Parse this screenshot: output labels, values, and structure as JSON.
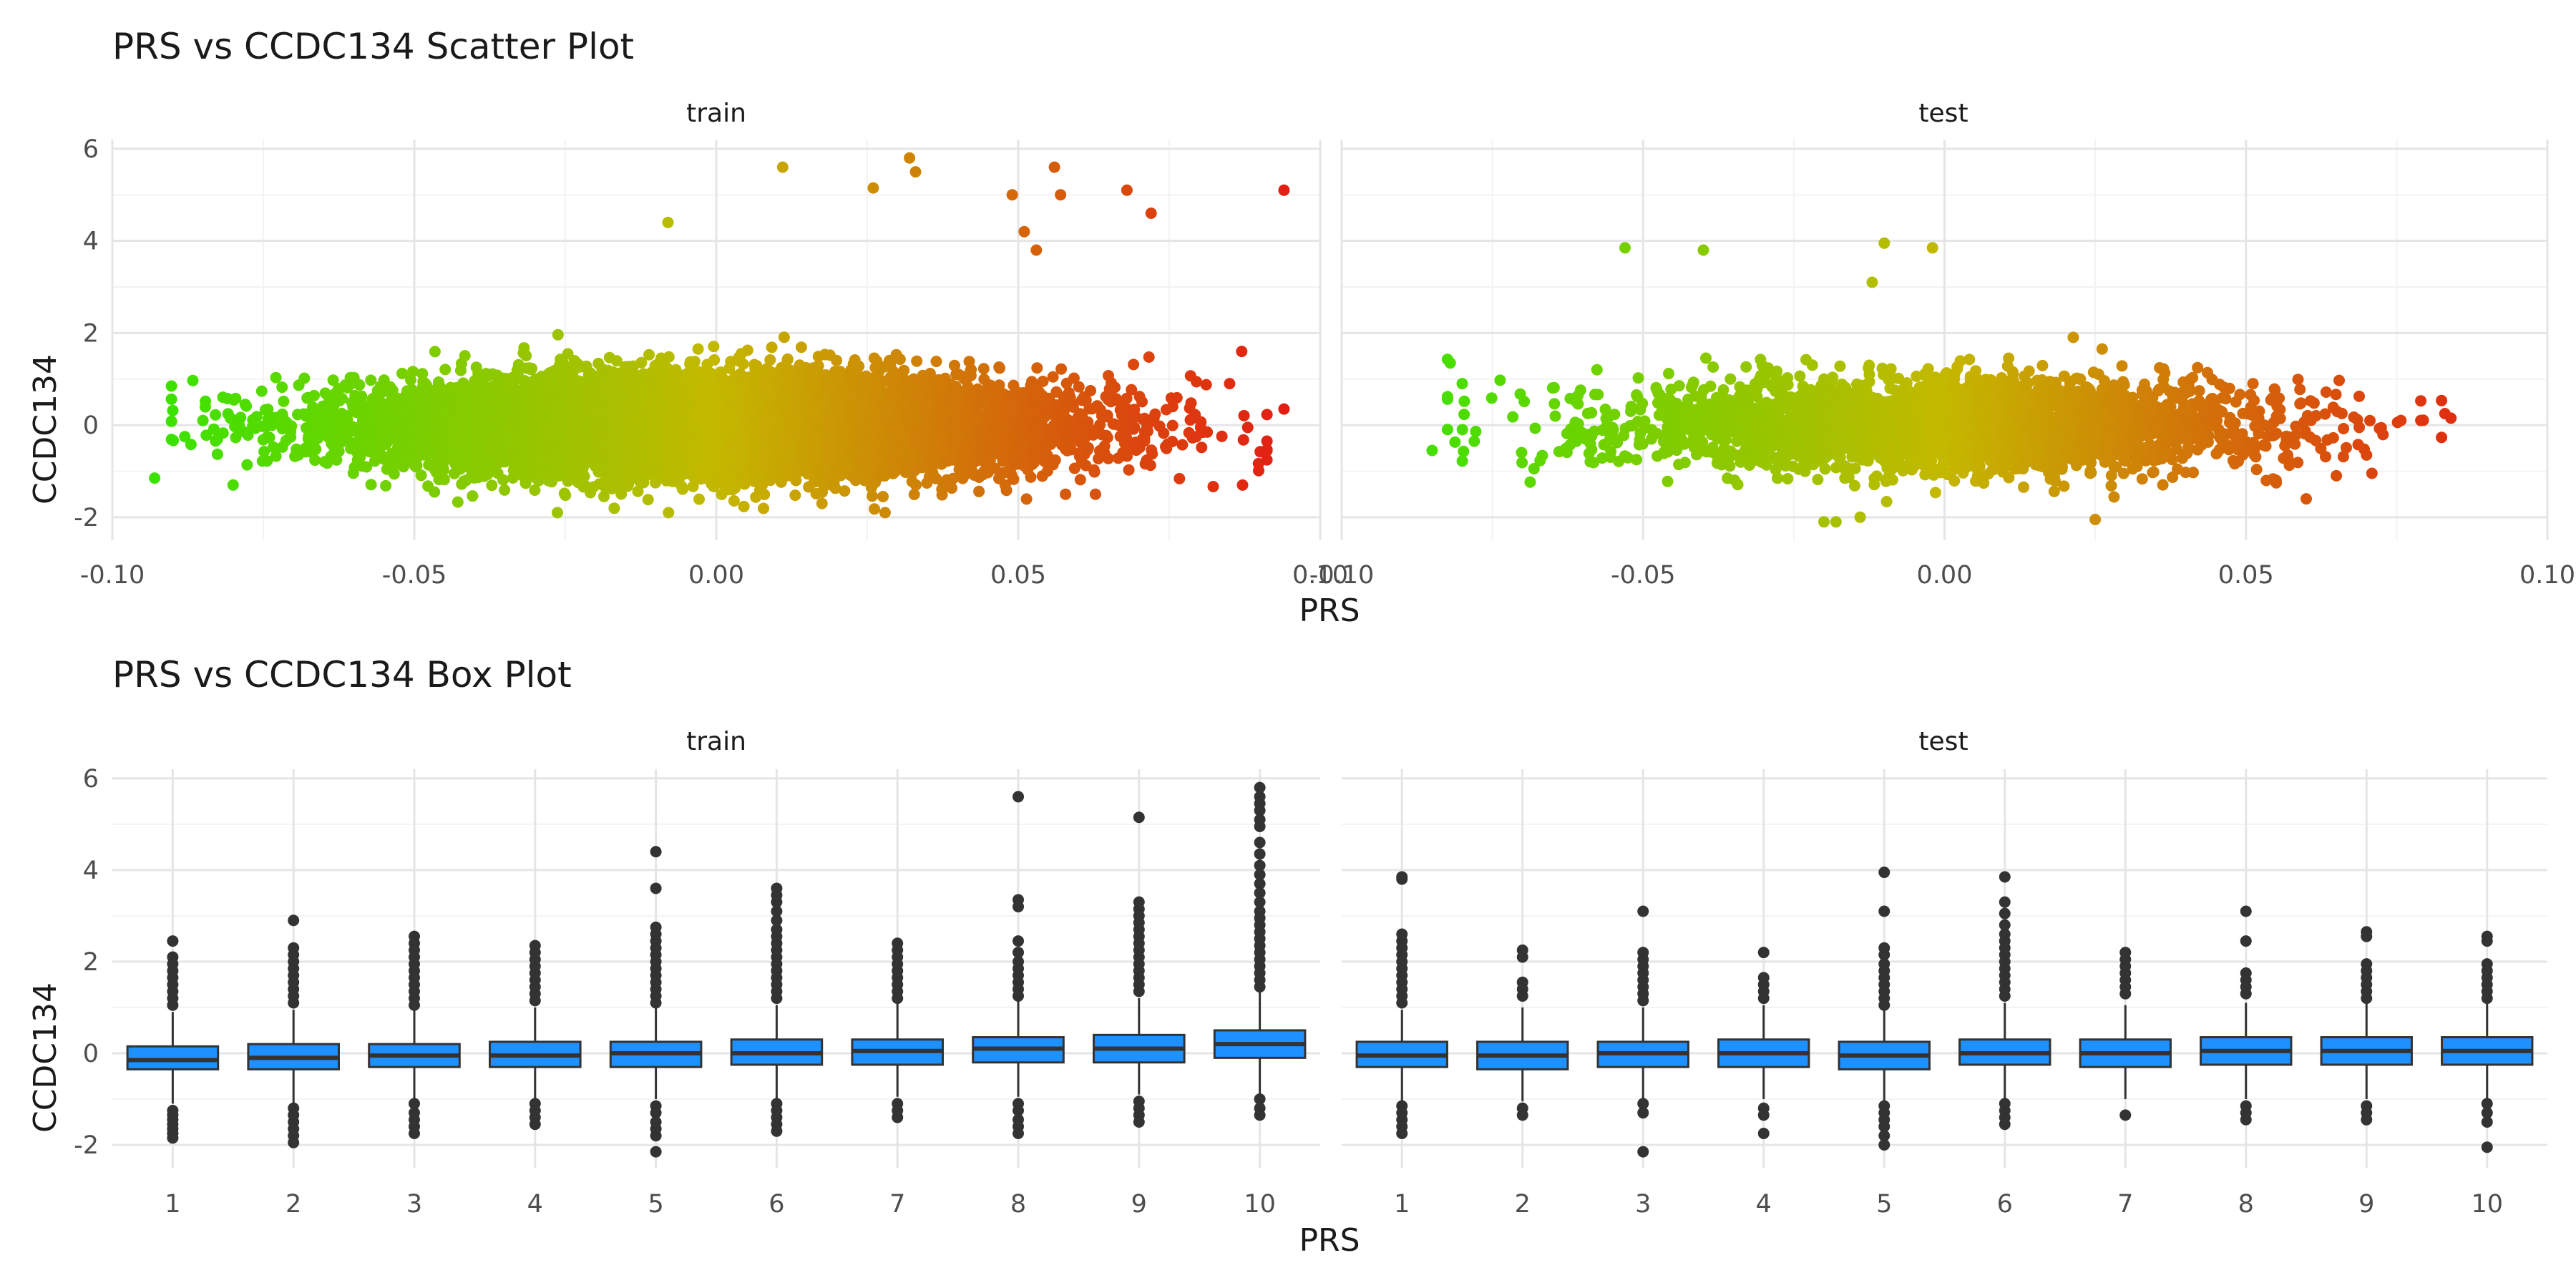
{
  "chart_data": [
    {
      "type": "scatter",
      "title": "PRS vs CCDC134 Scatter Plot",
      "xlabel": "PRS",
      "ylabel": "CCDC134",
      "xlim": [
        -0.1,
        0.1
      ],
      "ylim": [
        -2.5,
        6.2
      ],
      "x_ticks": [
        -0.1,
        -0.05,
        0.0,
        0.05,
        0.1
      ],
      "x_tick_labels": [
        "-0.10",
        "-0.05",
        "0.00",
        "0.05",
        "0.10"
      ],
      "y_ticks": [
        -2,
        0,
        2,
        4,
        6
      ],
      "grid": true,
      "legend": "none",
      "color_scale": {
        "low": "#2ee600",
        "mid": "#c4b800",
        "high": "#e51414",
        "mapped_to": "PRS"
      },
      "panels": [
        {
          "name": "train",
          "x_range": [
            -0.093,
            0.094
          ],
          "bulk_points": 12000,
          "highlighted_points": [
            [
              -0.093,
              -1.15
            ],
            [
              -0.088,
              -0.25
            ],
            [
              -0.085,
              0.1
            ],
            [
              -0.08,
              -1.3
            ],
            [
              -0.078,
              0.45
            ],
            [
              0.011,
              5.6
            ],
            [
              0.026,
              5.15
            ],
            [
              0.032,
              5.8
            ],
            [
              0.033,
              5.5
            ],
            [
              0.049,
              5.0
            ],
            [
              0.056,
              5.6
            ],
            [
              0.057,
              5.0
            ],
            [
              0.068,
              5.1
            ],
            [
              0.072,
              4.6
            ],
            [
              0.094,
              5.1
            ],
            [
              0.051,
              4.2
            ],
            [
              0.053,
              3.8
            ],
            [
              -0.008,
              4.4
            ],
            [
              0.094,
              0.35
            ],
            [
              0.087,
              1.6
            ],
            [
              0.085,
              0.9
            ],
            [
              0.088,
              -0.05
            ]
          ]
        },
        {
          "name": "test",
          "x_range": [
            -0.085,
            0.085
          ],
          "bulk_points": 3000,
          "highlighted_points": [
            [
              -0.085,
              -0.55
            ],
            [
              -0.082,
              1.35
            ],
            [
              -0.08,
              0.9
            ],
            [
              -0.078,
              -0.35
            ],
            [
              -0.053,
              3.85
            ],
            [
              -0.04,
              3.8
            ],
            [
              -0.01,
              3.95
            ],
            [
              -0.002,
              3.85
            ],
            [
              -0.012,
              3.1
            ],
            [
              0.083,
              0.25
            ],
            [
              0.084,
              0.15
            ],
            [
              0.07,
              -0.65
            ],
            [
              0.06,
              -1.6
            ],
            [
              0.025,
              -2.05
            ],
            [
              -0.014,
              -2.0
            ],
            [
              -0.02,
              -2.1
            ],
            [
              -0.018,
              -2.1
            ],
            [
              0.065,
              -1.1
            ],
            [
              0.055,
              -1.2
            ],
            [
              0.079,
              0.1
            ]
          ]
        }
      ]
    },
    {
      "type": "box",
      "title": "PRS vs CCDC134 Box Plot",
      "xlabel": "PRS",
      "ylabel": "CCDC134",
      "categories": [
        "1",
        "2",
        "3",
        "4",
        "5",
        "6",
        "7",
        "8",
        "9",
        "10"
      ],
      "ylim": [
        -2.5,
        6.2
      ],
      "y_ticks": [
        -2,
        0,
        2,
        4,
        6
      ],
      "grid": true,
      "box_color": "#1e90ff",
      "panels": [
        {
          "name": "train",
          "boxes": [
            {
              "q1": -0.35,
              "median": -0.15,
              "q3": 0.15,
              "lower": -1.1,
              "upper": 0.9,
              "outliers": [
                2.45,
                2.1,
                1.95,
                1.8,
                1.65,
                1.5,
                1.35,
                1.2,
                1.05,
                -1.25,
                -1.35,
                -1.45,
                -1.55,
                -1.65,
                -1.75,
                -1.85
              ]
            },
            {
              "q1": -0.35,
              "median": -0.1,
              "q3": 0.2,
              "lower": -1.1,
              "upper": 0.95,
              "outliers": [
                2.9,
                2.3,
                2.15,
                2.0,
                1.85,
                1.7,
                1.55,
                1.4,
                1.25,
                1.1,
                -1.2,
                -1.35,
                -1.5,
                -1.65,
                -1.8,
                -1.95
              ]
            },
            {
              "q1": -0.3,
              "median": -0.05,
              "q3": 0.2,
              "lower": -1.0,
              "upper": 0.95,
              "outliers": [
                2.55,
                2.4,
                2.25,
                2.1,
                1.95,
                1.8,
                1.65,
                1.5,
                1.35,
                1.2,
                1.05,
                -1.1,
                -1.3,
                -1.45,
                -1.6,
                -1.75
              ]
            },
            {
              "q1": -0.3,
              "median": -0.05,
              "q3": 0.25,
              "lower": -1.0,
              "upper": 1.0,
              "outliers": [
                2.35,
                2.2,
                2.05,
                1.9,
                1.75,
                1.6,
                1.45,
                1.3,
                1.15,
                -1.1,
                -1.25,
                -1.4,
                -1.55
              ]
            },
            {
              "q1": -0.3,
              "median": 0.0,
              "q3": 0.25,
              "lower": -1.0,
              "upper": 1.0,
              "outliers": [
                4.4,
                3.6,
                2.75,
                2.6,
                2.45,
                2.3,
                2.15,
                2.0,
                1.85,
                1.7,
                1.55,
                1.4,
                1.25,
                1.1,
                -1.15,
                -1.3,
                -1.5,
                -1.65,
                -1.8,
                -2.15
              ]
            },
            {
              "q1": -0.25,
              "median": 0.0,
              "q3": 0.3,
              "lower": -1.0,
              "upper": 1.05,
              "outliers": [
                3.6,
                3.45,
                3.3,
                3.1,
                2.9,
                2.7,
                2.55,
                2.4,
                2.25,
                2.1,
                1.95,
                1.8,
                1.65,
                1.5,
                1.35,
                1.2,
                -1.1,
                -1.25,
                -1.4,
                -1.55,
                -1.7
              ]
            },
            {
              "q1": -0.25,
              "median": 0.05,
              "q3": 0.3,
              "lower": -0.95,
              "upper": 1.1,
              "outliers": [
                2.4,
                2.25,
                2.1,
                1.95,
                1.8,
                1.65,
                1.5,
                1.35,
                1.2,
                -1.1,
                -1.25,
                -1.4
              ]
            },
            {
              "q1": -0.2,
              "median": 0.1,
              "q3": 0.35,
              "lower": -0.95,
              "upper": 1.15,
              "outliers": [
                5.6,
                3.35,
                3.2,
                2.45,
                2.2,
                2.0,
                1.85,
                1.7,
                1.55,
                1.4,
                1.25,
                -1.1,
                -1.25,
                -1.45,
                -1.6,
                -1.75
              ]
            },
            {
              "q1": -0.2,
              "median": 0.1,
              "q3": 0.4,
              "lower": -0.9,
              "upper": 1.2,
              "outliers": [
                5.15,
                3.3,
                3.15,
                3.0,
                2.85,
                2.7,
                2.55,
                2.4,
                2.25,
                2.1,
                1.95,
                1.8,
                1.65,
                1.5,
                1.35,
                -1.05,
                -1.2,
                -1.35,
                -1.5
              ]
            },
            {
              "q1": -0.1,
              "median": 0.2,
              "q3": 0.5,
              "lower": -0.9,
              "upper": 1.4,
              "outliers": [
                5.8,
                5.6,
                5.45,
                5.3,
                5.1,
                4.95,
                4.6,
                4.35,
                4.1,
                3.9,
                3.7,
                3.5,
                3.3,
                3.1,
                2.95,
                2.8,
                2.65,
                2.5,
                2.35,
                2.2,
                2.05,
                1.9,
                1.75,
                1.6,
                1.45,
                -1.0,
                -1.2,
                -1.35
              ]
            }
          ]
        },
        {
          "name": "test",
          "boxes": [
            {
              "q1": -0.3,
              "median": -0.05,
              "q3": 0.25,
              "lower": -1.05,
              "upper": 0.95,
              "outliers": [
                3.85,
                3.8,
                2.6,
                2.45,
                2.3,
                2.15,
                2.0,
                1.85,
                1.7,
                1.55,
                1.4,
                1.25,
                1.1,
                -1.15,
                -1.3,
                -1.45,
                -1.6,
                -1.75
              ]
            },
            {
              "q1": -0.35,
              "median": -0.05,
              "q3": 0.25,
              "lower": -1.05,
              "upper": 1.0,
              "outliers": [
                2.25,
                2.1,
                1.55,
                1.4,
                1.25,
                -1.2,
                -1.35
              ]
            },
            {
              "q1": -0.3,
              "median": 0.0,
              "q3": 0.25,
              "lower": -1.0,
              "upper": 1.0,
              "outliers": [
                3.1,
                2.2,
                2.05,
                1.9,
                1.75,
                1.6,
                1.45,
                1.3,
                1.15,
                -1.1,
                -1.3,
                -2.15
              ]
            },
            {
              "q1": -0.3,
              "median": 0.0,
              "q3": 0.3,
              "lower": -1.0,
              "upper": 1.05,
              "outliers": [
                2.2,
                1.65,
                1.5,
                1.35,
                1.2,
                -1.2,
                -1.35,
                -1.75
              ]
            },
            {
              "q1": -0.35,
              "median": -0.05,
              "q3": 0.25,
              "lower": -1.05,
              "upper": 1.0,
              "outliers": [
                3.95,
                3.1,
                2.3,
                2.15,
                1.95,
                1.8,
                1.65,
                1.5,
                1.35,
                1.2,
                1.05,
                -1.15,
                -1.3,
                -1.45,
                -1.6,
                -1.8,
                -2.0
              ]
            },
            {
              "q1": -0.25,
              "median": 0.0,
              "q3": 0.3,
              "lower": -1.0,
              "upper": 1.1,
              "outliers": [
                3.85,
                3.3,
                3.05,
                2.8,
                2.6,
                2.45,
                2.3,
                2.15,
                2.0,
                1.85,
                1.7,
                1.55,
                1.4,
                1.25,
                -1.1,
                -1.25,
                -1.4,
                -1.55
              ]
            },
            {
              "q1": -0.3,
              "median": 0.0,
              "q3": 0.3,
              "lower": -1.0,
              "upper": 1.05,
              "outliers": [
                2.2,
                2.05,
                1.9,
                1.75,
                1.6,
                1.45,
                1.3,
                -1.35
              ]
            },
            {
              "q1": -0.25,
              "median": 0.05,
              "q3": 0.35,
              "lower": -1.0,
              "upper": 1.1,
              "outliers": [
                3.1,
                2.45,
                1.75,
                1.6,
                1.45,
                1.3,
                -1.15,
                -1.3,
                -1.45
              ]
            },
            {
              "q1": -0.25,
              "median": 0.05,
              "q3": 0.35,
              "lower": -1.0,
              "upper": 1.1,
              "outliers": [
                2.65,
                2.55,
                1.95,
                1.8,
                1.65,
                1.5,
                1.35,
                1.2,
                -1.15,
                -1.3,
                -1.45
              ]
            },
            {
              "q1": -0.25,
              "median": 0.05,
              "q3": 0.35,
              "lower": -1.0,
              "upper": 1.1,
              "outliers": [
                2.55,
                2.45,
                1.95,
                1.8,
                1.65,
                1.5,
                1.35,
                1.2,
                -1.1,
                -1.3,
                -1.5,
                -2.05
              ]
            }
          ]
        }
      ]
    }
  ]
}
